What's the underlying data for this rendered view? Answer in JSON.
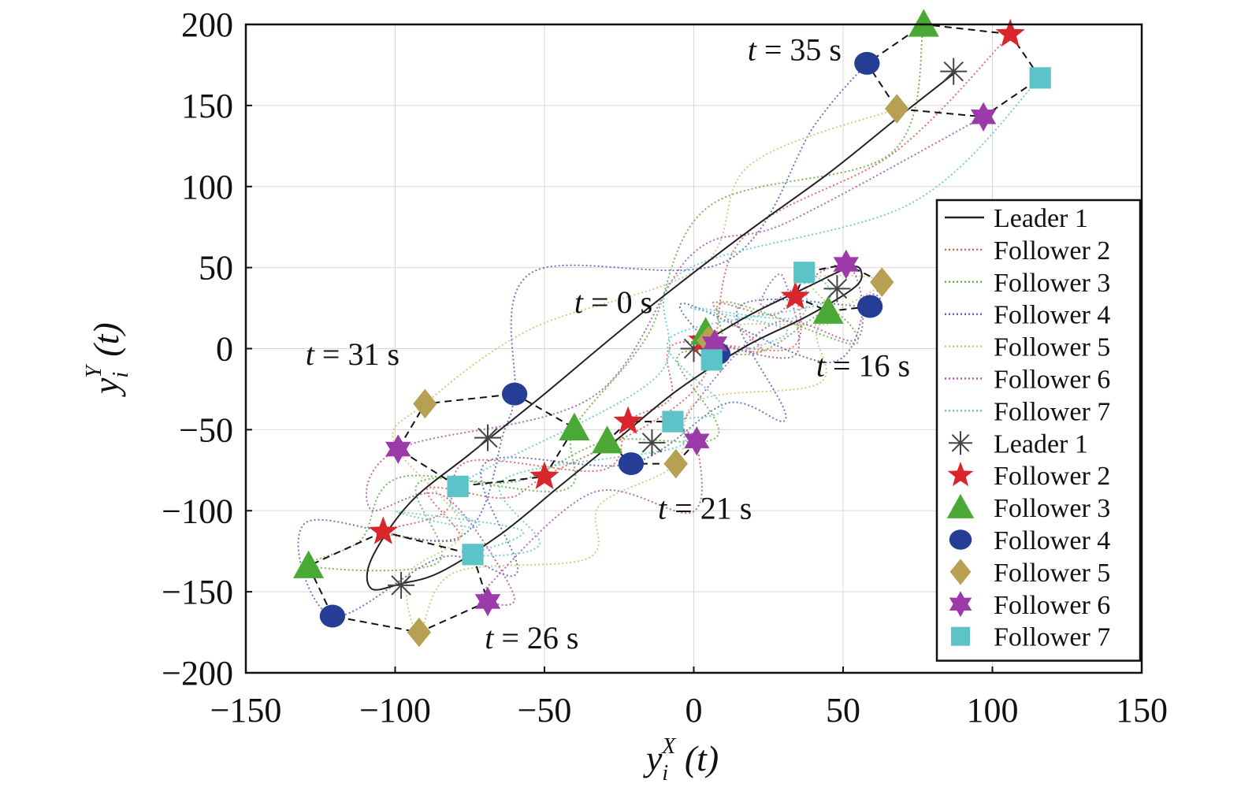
{
  "chart_data": {
    "type": "line",
    "xlabel_main": "y",
    "xlabel_sup": "X",
    "xlabel_sub": "i",
    "xlabel_arg": " (t)",
    "ylabel_main": "y",
    "ylabel_sup": "Y",
    "ylabel_sub": "i",
    "ylabel_arg": " (t)",
    "xlim": [
      -150,
      150
    ],
    "ylim": [
      -200,
      200
    ],
    "xticks": [
      -150,
      -100,
      -50,
      0,
      50,
      100,
      150
    ],
    "yticks": [
      -200,
      -150,
      -100,
      -50,
      0,
      50,
      100,
      150,
      200
    ],
    "grid": true,
    "legend_position": "right",
    "legend": {
      "lines": [
        {
          "label": "Leader 1",
          "color": "#222222",
          "style": "solid"
        },
        {
          "label": "Follower 2",
          "color": "#e0605a",
          "style": "dotted"
        },
        {
          "label": "Follower 3",
          "color": "#6ab04c",
          "style": "dotted"
        },
        {
          "label": "Follower 4",
          "color": "#5a6ab8",
          "style": "dotted"
        },
        {
          "label": "Follower 5",
          "color": "#d2c27a",
          "style": "dotted"
        },
        {
          "label": "Follower 6",
          "color": "#b05ab0",
          "style": "dotted"
        },
        {
          "label": "Follower 7",
          "color": "#6ac8c8",
          "style": "dotted"
        }
      ],
      "markers": [
        {
          "label": "Leader 1",
          "marker": "asterisk",
          "color": "#444444"
        },
        {
          "label": "Follower 2",
          "marker": "star",
          "color": "#d9262b"
        },
        {
          "label": "Follower 3",
          "marker": "triangle",
          "color": "#4aa935"
        },
        {
          "label": "Follower 4",
          "marker": "circle",
          "color": "#253d94"
        },
        {
          "label": "Follower 5",
          "marker": "diamond",
          "color": "#b8a052"
        },
        {
          "label": "Follower 6",
          "marker": "hexstar",
          "color": "#9b3aa8"
        },
        {
          "label": "Follower 7",
          "marker": "square",
          "color": "#5cc3c8"
        }
      ]
    },
    "time_labels": [
      {
        "text": "t = 35 s",
        "x": 18,
        "y": 178
      },
      {
        "text": "t = 0 s",
        "x": -40,
        "y": 22
      },
      {
        "text": "t = 31 s",
        "x": -130,
        "y": -10
      },
      {
        "text": "t = 16 s",
        "x": 41,
        "y": -17
      },
      {
        "text": "t = 21 s",
        "x": -12,
        "y": -105
      },
      {
        "text": "t = 26 s",
        "x": -70,
        "y": -185
      }
    ],
    "leader_trajectory": [
      [
        0,
        0
      ],
      [
        18,
        20
      ],
      [
        38,
        38
      ],
      [
        52,
        50
      ],
      [
        56,
        48
      ],
      [
        54,
        38
      ],
      [
        38,
        20
      ],
      [
        18,
        2
      ],
      [
        -5,
        -25
      ],
      [
        -25,
        -55
      ],
      [
        -45,
        -85
      ],
      [
        -65,
        -115
      ],
      [
        -85,
        -138
      ],
      [
        -98,
        -145
      ],
      [
        -108,
        -148
      ],
      [
        -108,
        -130
      ],
      [
        -95,
        -95
      ],
      [
        -75,
        -65
      ],
      [
        -50,
        -28
      ],
      [
        -20,
        18
      ],
      [
        15,
        68
      ],
      [
        45,
        108
      ],
      [
        70,
        145
      ],
      [
        88,
        171
      ]
    ],
    "snapshots": [
      {
        "time": "t = 0 s",
        "positions": {
          "Leader 1": [
            0,
            0
          ],
          "Follower 2": [
            3,
            5
          ],
          "Follower 3": [
            4,
            10
          ],
          "Follower 4": [
            8,
            -3
          ],
          "Follower 5": [
            5,
            5
          ],
          "Follower 6": [
            7,
            3
          ],
          "Follower 7": [
            6,
            -7
          ]
        }
      },
      {
        "time": "t = 16 s",
        "positions": {
          "Leader 1": [
            48,
            37
          ],
          "Follower 2": [
            34,
            32
          ],
          "Follower 3": [
            45,
            23
          ],
          "Follower 4": [
            59,
            26
          ],
          "Follower 5": [
            63,
            41
          ],
          "Follower 6": [
            51,
            52
          ],
          "Follower 7": [
            37,
            47
          ]
        }
      },
      {
        "time": "t = 21 s",
        "positions": {
          "Leader 1": [
            -14,
            -58
          ],
          "Follower 2": [
            -22,
            -45
          ],
          "Follower 3": [
            -29,
            -57
          ],
          "Follower 4": [
            -21,
            -71
          ],
          "Follower 5": [
            -6,
            -71
          ],
          "Follower 6": [
            1,
            -57
          ],
          "Follower 7": [
            -7,
            -45
          ]
        }
      },
      {
        "time": "t = 26 s",
        "positions": {
          "Leader 1": [
            -98,
            -146
          ],
          "Follower 2": [
            -104,
            -113
          ],
          "Follower 3": [
            -129,
            -134
          ],
          "Follower 4": [
            -121,
            -165
          ],
          "Follower 5": [
            -92,
            -175
          ],
          "Follower 6": [
            -69,
            -156
          ],
          "Follower 7": [
            -74,
            -127
          ]
        }
      },
      {
        "time": "t = 31 s",
        "positions": {
          "Leader 1": [
            -69,
            -55
          ],
          "Follower 2": [
            -50,
            -79
          ],
          "Follower 3": [
            -40,
            -49
          ],
          "Follower 4": [
            -60,
            -28
          ],
          "Follower 5": [
            -90,
            -34
          ],
          "Follower 6": [
            -99,
            -62
          ],
          "Follower 7": [
            -79,
            -85
          ]
        }
      },
      {
        "time": "t = 35 s",
        "positions": {
          "Leader 1": [
            87,
            171
          ],
          "Follower 2": [
            106,
            194
          ],
          "Follower 3": [
            77,
            200
          ],
          "Follower 4": [
            58,
            176
          ],
          "Follower 5": [
            68,
            148
          ],
          "Follower 6": [
            97,
            143
          ],
          "Follower 7": [
            116,
            167
          ]
        }
      }
    ],
    "formation_order": [
      "Follower 2",
      "Follower 3",
      "Follower 4",
      "Follower 5",
      "Follower 6",
      "Follower 7"
    ]
  }
}
